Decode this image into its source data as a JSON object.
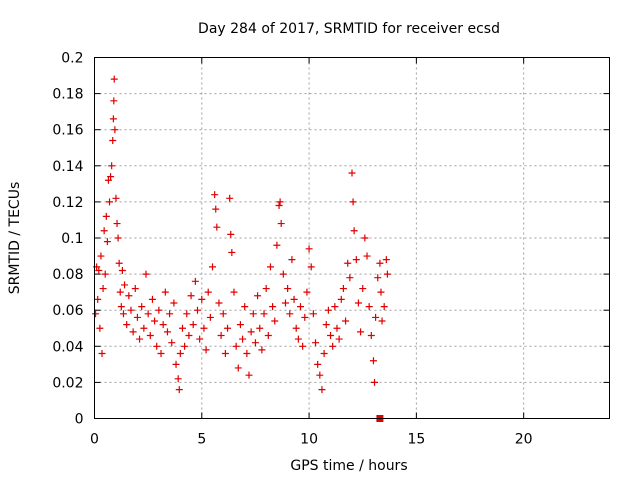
{
  "chart_data": {
    "type": "scatter",
    "title": "Day 284 of 2017, SRMTID for receiver ecsd",
    "xlabel": "GPS time / hours",
    "ylabel": "SRMTID / TECUs",
    "xlim": [
      0,
      24
    ],
    "ylim": [
      0,
      0.2
    ],
    "xticks": [
      0,
      5,
      10,
      15,
      20
    ],
    "xtick_labels": [
      "0",
      "5",
      "10",
      "15",
      "20"
    ],
    "yticks": [
      0,
      0.02,
      0.04,
      0.06,
      0.08,
      0.1,
      0.12,
      0.14,
      0.16,
      0.18,
      0.2
    ],
    "ytick_labels": [
      "0",
      "0.02",
      "0.04",
      "0.06",
      "0.08",
      "0.1",
      "0.12",
      "0.14",
      "0.16",
      "0.18",
      "0.2"
    ],
    "grid": true,
    "marker_color": "#e00000",
    "series": [
      {
        "name": "SRMTID",
        "marker": "plus",
        "points": [
          [
            0.05,
            0.058
          ],
          [
            0.1,
            0.084
          ],
          [
            0.15,
            0.066
          ],
          [
            0.2,
            0.082
          ],
          [
            0.25,
            0.05
          ],
          [
            0.3,
            0.09
          ],
          [
            0.35,
            0.036
          ],
          [
            0.4,
            0.072
          ],
          [
            0.45,
            0.104
          ],
          [
            0.5,
            0.08
          ],
          [
            0.55,
            0.112
          ],
          [
            0.6,
            0.098
          ],
          [
            0.65,
            0.132
          ],
          [
            0.7,
            0.12
          ],
          [
            0.75,
            0.134
          ],
          [
            0.8,
            0.14
          ],
          [
            0.85,
            0.154
          ],
          [
            0.88,
            0.166
          ],
          [
            0.9,
            0.176
          ],
          [
            0.92,
            0.188
          ],
          [
            0.95,
            0.16
          ],
          [
            1.0,
            0.122
          ],
          [
            1.05,
            0.108
          ],
          [
            1.1,
            0.1
          ],
          [
            1.15,
            0.086
          ],
          [
            1.2,
            0.07
          ],
          [
            1.25,
            0.062
          ],
          [
            1.3,
            0.082
          ],
          [
            1.35,
            0.058
          ],
          [
            1.4,
            0.074
          ],
          [
            1.5,
            0.052
          ],
          [
            1.6,
            0.068
          ],
          [
            1.7,
            0.06
          ],
          [
            1.8,
            0.048
          ],
          [
            1.9,
            0.072
          ],
          [
            2.0,
            0.056
          ],
          [
            2.1,
            0.044
          ],
          [
            2.2,
            0.062
          ],
          [
            2.3,
            0.05
          ],
          [
            2.4,
            0.08
          ],
          [
            2.5,
            0.058
          ],
          [
            2.6,
            0.046
          ],
          [
            2.7,
            0.066
          ],
          [
            2.8,
            0.054
          ],
          [
            2.9,
            0.04
          ],
          [
            3.0,
            0.06
          ],
          [
            3.1,
            0.036
          ],
          [
            3.2,
            0.052
          ],
          [
            3.3,
            0.07
          ],
          [
            3.4,
            0.048
          ],
          [
            3.5,
            0.058
          ],
          [
            3.6,
            0.042
          ],
          [
            3.7,
            0.064
          ],
          [
            3.8,
            0.03
          ],
          [
            3.9,
            0.022
          ],
          [
            3.95,
            0.016
          ],
          [
            4.0,
            0.036
          ],
          [
            4.1,
            0.05
          ],
          [
            4.2,
            0.04
          ],
          [
            4.3,
            0.058
          ],
          [
            4.4,
            0.046
          ],
          [
            4.5,
            0.068
          ],
          [
            4.6,
            0.052
          ],
          [
            4.7,
            0.076
          ],
          [
            4.8,
            0.06
          ],
          [
            4.9,
            0.044
          ],
          [
            5.0,
            0.066
          ],
          [
            5.1,
            0.05
          ],
          [
            5.2,
            0.038
          ],
          [
            5.3,
            0.07
          ],
          [
            5.4,
            0.056
          ],
          [
            5.5,
            0.084
          ],
          [
            5.6,
            0.124
          ],
          [
            5.65,
            0.116
          ],
          [
            5.7,
            0.106
          ],
          [
            5.8,
            0.064
          ],
          [
            5.9,
            0.046
          ],
          [
            6.0,
            0.058
          ],
          [
            6.1,
            0.036
          ],
          [
            6.2,
            0.05
          ],
          [
            6.3,
            0.122
          ],
          [
            6.35,
            0.102
          ],
          [
            6.4,
            0.092
          ],
          [
            6.5,
            0.07
          ],
          [
            6.6,
            0.04
          ],
          [
            6.7,
            0.028
          ],
          [
            6.8,
            0.052
          ],
          [
            6.9,
            0.044
          ],
          [
            7.0,
            0.062
          ],
          [
            7.1,
            0.036
          ],
          [
            7.2,
            0.024
          ],
          [
            7.3,
            0.048
          ],
          [
            7.4,
            0.058
          ],
          [
            7.5,
            0.042
          ],
          [
            7.6,
            0.068
          ],
          [
            7.7,
            0.05
          ],
          [
            7.8,
            0.038
          ],
          [
            7.9,
            0.058
          ],
          [
            8.0,
            0.072
          ],
          [
            8.1,
            0.046
          ],
          [
            8.2,
            0.084
          ],
          [
            8.3,
            0.062
          ],
          [
            8.4,
            0.054
          ],
          [
            8.5,
            0.096
          ],
          [
            8.6,
            0.118
          ],
          [
            8.65,
            0.12
          ],
          [
            8.7,
            0.108
          ],
          [
            8.8,
            0.08
          ],
          [
            8.9,
            0.064
          ],
          [
            9.0,
            0.072
          ],
          [
            9.1,
            0.058
          ],
          [
            9.2,
            0.088
          ],
          [
            9.3,
            0.066
          ],
          [
            9.4,
            0.05
          ],
          [
            9.5,
            0.044
          ],
          [
            9.6,
            0.062
          ],
          [
            9.7,
            0.04
          ],
          [
            9.8,
            0.056
          ],
          [
            9.9,
            0.07
          ],
          [
            10.0,
            0.094
          ],
          [
            10.1,
            0.084
          ],
          [
            10.2,
            0.058
          ],
          [
            10.3,
            0.042
          ],
          [
            10.4,
            0.03
          ],
          [
            10.5,
            0.024
          ],
          [
            10.6,
            0.016
          ],
          [
            10.7,
            0.036
          ],
          [
            10.8,
            0.052
          ],
          [
            10.9,
            0.06
          ],
          [
            11.0,
            0.046
          ],
          [
            11.1,
            0.04
          ],
          [
            11.2,
            0.062
          ],
          [
            11.3,
            0.05
          ],
          [
            11.4,
            0.044
          ],
          [
            11.5,
            0.066
          ],
          [
            11.6,
            0.072
          ],
          [
            11.7,
            0.054
          ],
          [
            11.8,
            0.086
          ],
          [
            11.9,
            0.078
          ],
          [
            12.0,
            0.136
          ],
          [
            12.05,
            0.12
          ],
          [
            12.1,
            0.104
          ],
          [
            12.2,
            0.088
          ],
          [
            12.3,
            0.064
          ],
          [
            12.4,
            0.048
          ],
          [
            12.5,
            0.072
          ],
          [
            12.6,
            0.1
          ],
          [
            12.7,
            0.09
          ],
          [
            12.8,
            0.062
          ],
          [
            12.9,
            0.046
          ],
          [
            13.0,
            0.032
          ],
          [
            13.05,
            0.02
          ],
          [
            13.1,
            0.056
          ],
          [
            13.2,
            0.078
          ],
          [
            13.3,
            0.086
          ],
          [
            13.35,
            0.07
          ],
          [
            13.4,
            0.054
          ],
          [
            13.5,
            0.062
          ],
          [
            13.6,
            0.088
          ],
          [
            13.65,
            0.08
          ]
        ]
      }
    ],
    "annotations": [
      {
        "type": "square_marker",
        "x": 13.3,
        "y": 0,
        "color": "#e00000"
      }
    ]
  }
}
